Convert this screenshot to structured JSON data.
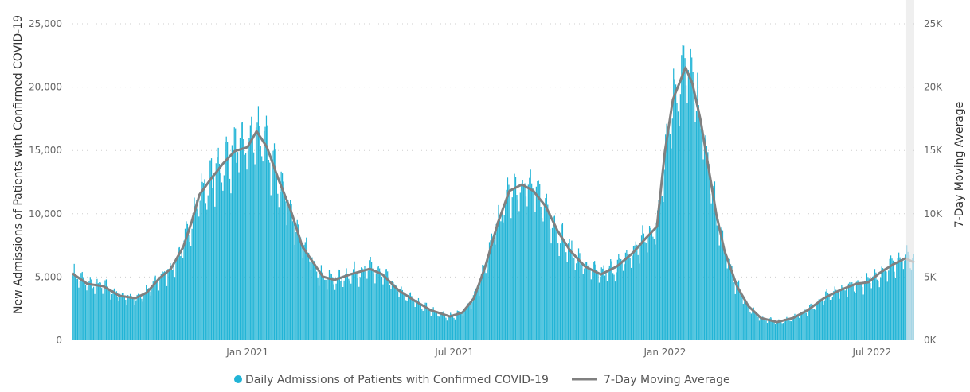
{
  "chart_data": {
    "type": "bar",
    "title": "",
    "start_date": "2020-08-01",
    "end_day": 736,
    "incomplete_days": 7,
    "ylabel": "New Admissions of Patients with Confirmed COVID-19",
    "y2label": "7-Day Moving Average",
    "ylim": [
      0,
      25000
    ],
    "y2lim": [
      0,
      25000
    ],
    "yticks": [
      {
        "v": 0,
        "label": "0"
      },
      {
        "v": 5000,
        "label": "5,000"
      },
      {
        "v": 10000,
        "label": "10,000"
      },
      {
        "v": 15000,
        "label": "15,000"
      },
      {
        "v": 20000,
        "label": "20,000"
      },
      {
        "v": 25000,
        "label": "25,000"
      }
    ],
    "y2ticks": [
      {
        "v": 0,
        "label": "0K"
      },
      {
        "v": 5000,
        "label": "5K"
      },
      {
        "v": 10000,
        "label": "10K"
      },
      {
        "v": 15000,
        "label": "15K"
      },
      {
        "v": 20000,
        "label": "20K"
      },
      {
        "v": 25000,
        "label": "25K"
      }
    ],
    "xticks": [
      {
        "day": 153,
        "label": "Jan 2021"
      },
      {
        "day": 334,
        "label": "Jul 2021"
      },
      {
        "day": 518,
        "label": "Jan 2022"
      },
      {
        "day": 699,
        "label": "Jul 2022"
      }
    ],
    "grid": true,
    "legend_position": "bottom-center",
    "series": [
      {
        "name": "Daily Admissions of Patients with Confirmed COVID-19",
        "type": "bar",
        "color": "#21b4d6",
        "color_incomplete": "#a6d6e6",
        "weekday_factors": [
          1.07,
          1.1,
          1.06,
          1.0,
          0.94,
          0.84,
          0.99
        ]
      },
      {
        "name": "7-Day Moving Average",
        "type": "line",
        "color": "#808080",
        "points": [
          [
            0,
            5280
          ],
          [
            13,
            4460
          ],
          [
            27,
            4270
          ],
          [
            41,
            3520
          ],
          [
            55,
            3330
          ],
          [
            65,
            3770
          ],
          [
            76,
            4900
          ],
          [
            86,
            5650
          ],
          [
            97,
            7410
          ],
          [
            104,
            9300
          ],
          [
            111,
            11500
          ],
          [
            121,
            12750
          ],
          [
            132,
            14000
          ],
          [
            142,
            14950
          ],
          [
            153,
            15260
          ],
          [
            161,
            16520
          ],
          [
            170,
            15260
          ],
          [
            180,
            12750
          ],
          [
            191,
            10240
          ],
          [
            201,
            7410
          ],
          [
            208,
            6470
          ],
          [
            219,
            5030
          ],
          [
            229,
            4770
          ],
          [
            243,
            5210
          ],
          [
            260,
            5650
          ],
          [
            271,
            5210
          ],
          [
            285,
            3960
          ],
          [
            299,
            3140
          ],
          [
            313,
            2390
          ],
          [
            330,
            1880
          ],
          [
            341,
            2200
          ],
          [
            351,
            3330
          ],
          [
            361,
            5840
          ],
          [
            372,
            9300
          ],
          [
            382,
            11800
          ],
          [
            393,
            12310
          ],
          [
            403,
            11800
          ],
          [
            414,
            10550
          ],
          [
            424,
            8670
          ],
          [
            435,
            7100
          ],
          [
            448,
            5840
          ],
          [
            462,
            5210
          ],
          [
            476,
            5840
          ],
          [
            490,
            6910
          ],
          [
            501,
            8040
          ],
          [
            511,
            8980
          ],
          [
            518,
            14950
          ],
          [
            525,
            19030
          ],
          [
            536,
            21550
          ],
          [
            542,
            20290
          ],
          [
            549,
            17460
          ],
          [
            556,
            13690
          ],
          [
            563,
            9920
          ],
          [
            570,
            7100
          ],
          [
            581,
            4270
          ],
          [
            591,
            2700
          ],
          [
            602,
            1760
          ],
          [
            616,
            1440
          ],
          [
            630,
            1760
          ],
          [
            643,
            2390
          ],
          [
            657,
            3330
          ],
          [
            671,
            3960
          ],
          [
            685,
            4460
          ],
          [
            696,
            4590
          ],
          [
            706,
            5340
          ],
          [
            717,
            5970
          ],
          [
            728,
            6470
          ],
          [
            736,
            6160
          ]
        ]
      }
    ]
  }
}
